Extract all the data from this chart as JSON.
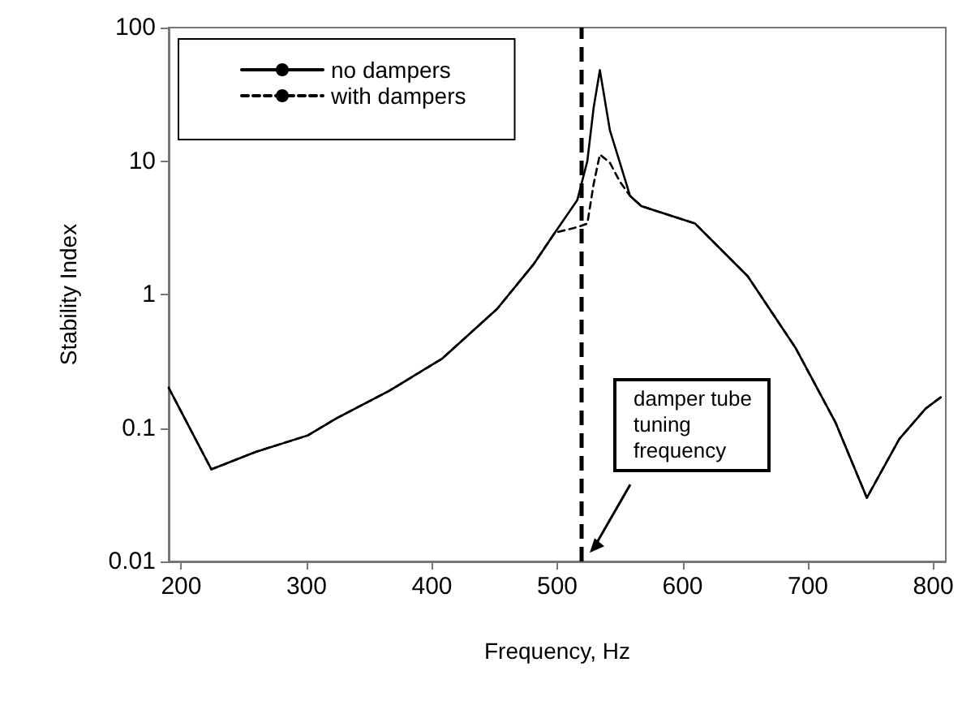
{
  "chart_data": {
    "type": "line",
    "xlabel": "Frequency, Hz",
    "ylabel": "Stability Index",
    "x": [
      190,
      224,
      259,
      301,
      323,
      366,
      408,
      452,
      481,
      498,
      516,
      524,
      529,
      534,
      542,
      550,
      558,
      567,
      610,
      652,
      690,
      722,
      747,
      773,
      794,
      806
    ],
    "series": [
      {
        "name": "no dampers",
        "color": "#000000",
        "line_style": "solid",
        "values": [
          0.2,
          0.049,
          0.066,
          0.088,
          0.117,
          0.19,
          0.33,
          0.78,
          1.68,
          2.9,
          5.1,
          10,
          25,
          48,
          17,
          9.7,
          5.5,
          4.6,
          3.4,
          1.37,
          0.4,
          0.11,
          0.03,
          0.083,
          0.14,
          0.17
        ]
      },
      {
        "name": "with dampers",
        "color": "#000000",
        "line_style": "dashed",
        "values": [
          0.2,
          0.049,
          0.066,
          0.088,
          0.117,
          0.19,
          0.33,
          0.78,
          1.68,
          2.9,
          3.2,
          3.4,
          6.7,
          11.2,
          9.7,
          7,
          5.5,
          4.6,
          3.4,
          1.37,
          0.4,
          0.11,
          0.03,
          0.083,
          0.14,
          0.17
        ]
      }
    ],
    "log": "y",
    "xlim": [
      190,
      810
    ],
    "xticks": [
      200,
      300,
      400,
      500,
      600,
      700,
      800
    ],
    "ylim": [
      0.01,
      100
    ],
    "yticks": [
      0.01,
      0.1,
      1,
      10,
      100
    ],
    "grid": false,
    "legend": "top left",
    "marker": "none",
    "ref_lines": [
      {
        "axis": "x",
        "value": 519,
        "color": "#000000",
        "line_style": "dashed"
      }
    ],
    "annotations": [
      {
        "text": "damper tube\ntuning\nfrequency",
        "x": 522,
        "y": 0.011
      }
    ]
  }
}
